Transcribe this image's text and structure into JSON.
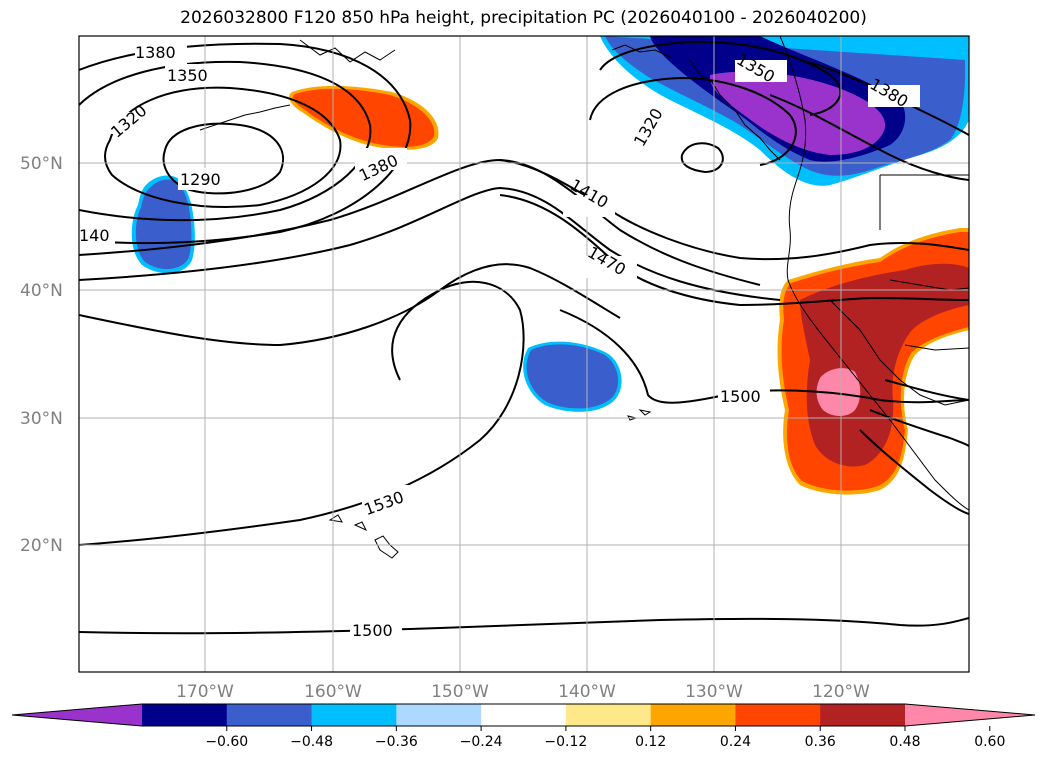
{
  "title": "2026032800 F120 850 hPa height, precipitation PC (2026040100 - 2026040200)",
  "lat_labels": [
    "50°N",
    "40°N",
    "30°N",
    "20°N"
  ],
  "lon_labels": [
    "170°W",
    "160°W",
    "150°W",
    "140°W",
    "130°W",
    "120°W"
  ],
  "contour_labels": [
    "1380",
    "1350",
    "1320",
    "1290",
    "140",
    "1380",
    "1320",
    "1350",
    "1380",
    "1410",
    "1470",
    "1500",
    "1530",
    "1500"
  ],
  "colorbar": {
    "ticks": [
      "−0.60",
      "−0.48",
      "−0.36",
      "−0.24",
      "−0.12",
      "0.12",
      "0.24",
      "0.36",
      "0.48",
      "0.60"
    ],
    "colors": [
      "#9933cc",
      "#00008b",
      "#3a5fcd",
      "#00bfff",
      "#add8ff",
      "#ffffff",
      "#ffe88a",
      "#ffa500",
      "#ff4500",
      "#b22222",
      "#ff88aa"
    ]
  },
  "palette": {
    "neg_purple": "#9933cc",
    "neg_navy": "#00008b",
    "neg_blue": "#3a5fcd",
    "neg_cyan": "#00bfff",
    "pos_orange": "#ff4500",
    "pos_darkorange": "#ffa500",
    "pos_red": "#b22222",
    "pos_pink": "#ff88aa",
    "grid": "#b0b0b0",
    "axis_text": "#808080"
  }
}
